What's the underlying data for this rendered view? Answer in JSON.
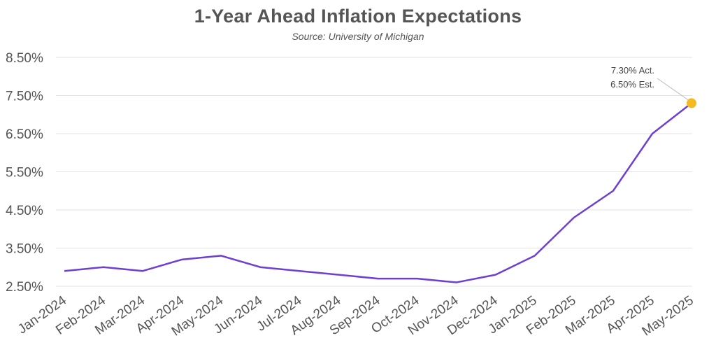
{
  "chart_data": {
    "type": "line",
    "title": "1-Year Ahead Inflation Expectations",
    "subtitle": "Source: University of Michigan",
    "categories": [
      "Jan-2024",
      "Feb-2024",
      "Mar-2024",
      "Apr-2024",
      "May-2024",
      "Jun-2024",
      "Jul-2024",
      "Aug-2024",
      "Sep-2024",
      "Oct-2024",
      "Nov-2024",
      "Dec-2024",
      "Jan-2025",
      "Feb-2025",
      "Mar-2025",
      "Apr-2025",
      "May-2025"
    ],
    "series": [
      {
        "values": [
          2.9,
          3.0,
          2.9,
          3.2,
          3.3,
          3.0,
          2.9,
          2.8,
          2.7,
          2.7,
          2.6,
          2.8,
          3.3,
          4.3,
          5.0,
          6.5,
          7.3
        ]
      }
    ],
    "yticks": [
      "8.50%",
      "7.50%",
      "6.50%",
      "5.50%",
      "4.50%",
      "3.50%",
      "2.50%"
    ],
    "ytick_values": [
      8.5,
      7.5,
      6.5,
      5.5,
      4.5,
      3.5,
      2.5
    ],
    "ylim": [
      2.5,
      8.5
    ],
    "grid": true,
    "line_color": "#6f3fd1",
    "marker_color": "#f5b921",
    "annotation": {
      "line1": "7.30% Act.",
      "line2": "6.50% Est."
    }
  }
}
